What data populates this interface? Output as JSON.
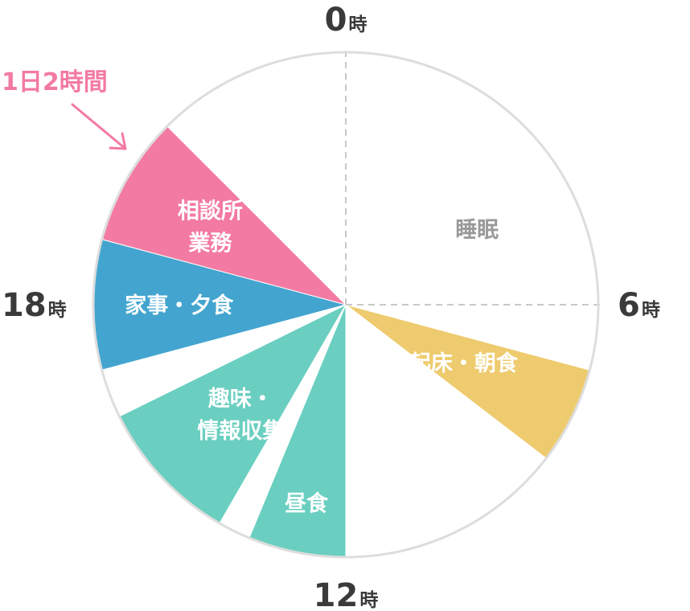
{
  "chart_data": {
    "type": "pie",
    "title": "",
    "clock_hours": 24,
    "hour_marks": [
      {
        "big": "0",
        "small": "時"
      },
      {
        "big": "6",
        "small": "時"
      },
      {
        "big": "12",
        "small": "時"
      },
      {
        "big": "18",
        "small": "時"
      }
    ],
    "slices": [
      {
        "label_lines": [
          "睡眠"
        ],
        "start_hour": 0,
        "end_hour": 7,
        "color": "#ffffff",
        "label_color": "#999999"
      },
      {
        "label_lines": [
          "起床・朝食"
        ],
        "start_hour": 7,
        "end_hour": 8.5,
        "color": "#eecb6e",
        "label_color": "#ffffff"
      },
      {
        "label_lines": [],
        "start_hour": 8.5,
        "end_hour": 12,
        "color": "#ffffff",
        "label_color": "#ffffff"
      },
      {
        "label_lines": [
          "昼食"
        ],
        "start_hour": 12,
        "end_hour": 13.5,
        "color": "#6acfc0",
        "label_color": "#ffffff"
      },
      {
        "label_lines": [],
        "start_hour": 13.5,
        "end_hour": 14,
        "color": "#ffffff",
        "label_color": "#ffffff"
      },
      {
        "label_lines": [
          "趣味・",
          "情報収集"
        ],
        "start_hour": 14,
        "end_hour": 16.25,
        "color": "#6acfc0",
        "label_color": "#ffffff"
      },
      {
        "label_lines": [],
        "start_hour": 16.25,
        "end_hour": 17,
        "color": "#ffffff",
        "label_color": "#ffffff"
      },
      {
        "label_lines": [
          "家事・夕食"
        ],
        "start_hour": 17,
        "end_hour": 19,
        "color": "#43a5cf",
        "label_color": "#ffffff"
      },
      {
        "label_lines": [
          "相談所",
          "業務"
        ],
        "start_hour": 19,
        "end_hour": 21,
        "color": "#f37aa2",
        "label_color": "#ffffff"
      },
      {
        "label_lines": [],
        "start_hour": 21,
        "end_hour": 24,
        "color": "#ffffff",
        "label_color": "#ffffff"
      }
    ],
    "annotation": {
      "text": "1日2時間",
      "color": "#f37aa2"
    },
    "outline_color": "#dddddd",
    "guide_line_color": "#c8c8c8"
  }
}
